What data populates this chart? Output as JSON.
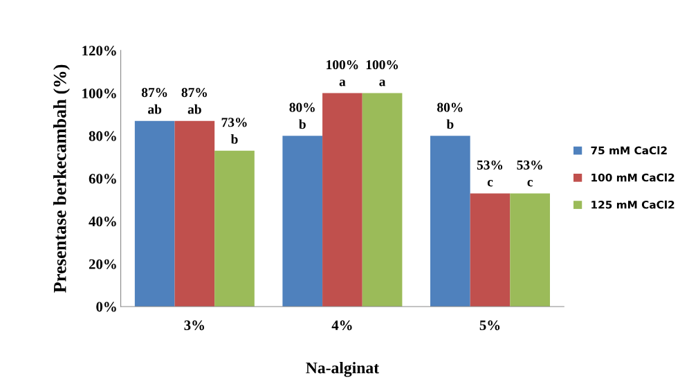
{
  "chart_data": {
    "type": "bar",
    "xlabel": "Na-alginat",
    "ylabel": "Presentase berkecambah (%)",
    "categories": [
      "3%",
      "4%",
      "5%"
    ],
    "series": [
      {
        "name": "75 mM CaCl2",
        "color": "#4f81bd",
        "values": [
          87,
          80,
          80
        ],
        "value_labels": [
          "87%\nab",
          "80%\nb",
          "80%\nb"
        ]
      },
      {
        "name": "100 mM CaCl2",
        "color": "#c0504d",
        "values": [
          87,
          100,
          53
        ],
        "value_labels": [
          "87%\nab",
          "100%\na",
          "53%\nc"
        ]
      },
      {
        "name": "125 mM CaCl2",
        "color": "#9bbb59",
        "values": [
          73,
          100,
          53
        ],
        "value_labels": [
          "73%\nb",
          "100%\na",
          "53%\nc"
        ]
      }
    ],
    "ylim": [
      0,
      120
    ],
    "yticks": [
      {
        "value": 0,
        "label": "0%"
      },
      {
        "value": 20,
        "label": "20%"
      },
      {
        "value": 40,
        "label": "40%"
      },
      {
        "value": 60,
        "label": "60%"
      },
      {
        "value": 80,
        "label": "80%"
      },
      {
        "value": 100,
        "label": "100%"
      },
      {
        "value": 120,
        "label": "120%"
      }
    ],
    "grid": false,
    "legend": "right"
  }
}
